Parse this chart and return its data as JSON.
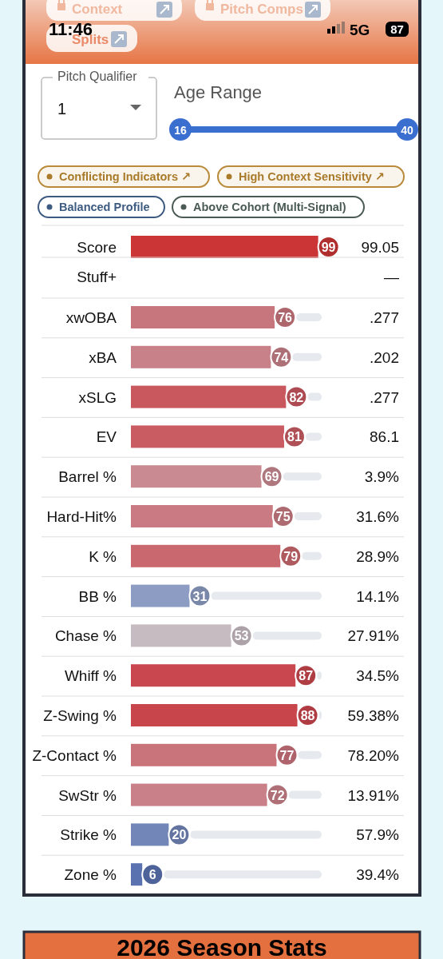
{
  "chart_data": {
    "type": "bar",
    "orientation": "horizontal",
    "categories": [
      "Score",
      "Stuff+",
      "xwOBA",
      "xBA",
      "xSLG",
      "EV",
      "Barrel %",
      "Hard-Hit%",
      "K %",
      "BB %",
      "Chase %",
      "Whiff %",
      "Z-Swing %",
      "Z-Contact %",
      "SwStr %",
      "Strike %",
      "Zone %"
    ],
    "values": [
      99,
      null,
      76,
      74,
      82,
      81,
      69,
      75,
      79,
      31,
      53,
      87,
      88,
      77,
      72,
      20,
      6
    ],
    "colors": [
      "#cc3535",
      null,
      "#c7767d",
      "#c98189",
      "#c9575e",
      "#c95c62",
      "#c98a91",
      "#c97a82",
      "#c9686e",
      "#8c9cc2",
      "#c6bbc1",
      "#c9474e",
      "#c9454c",
      "#c9737a",
      "#c98088",
      "#7286b8",
      "#5a72b0"
    ],
    "xlim": [
      0,
      100
    ],
    "tick_labels": "y",
    "data_labels": true,
    "annotations": [
      "Context",
      "Pitch Comps",
      "Splits",
      "11:46",
      "5G",
      "87",
      "Pitch Qualifier",
      "1",
      "Age Range",
      "16",
      "40",
      "Conflicting Indicators ↗",
      "High Context Sensitivity ↗",
      "Balanced Profile",
      "Above Cohort (Multi-Signal)",
      "2026 Season Stats",
      "99.05",
      "—",
      ".277",
      ".202",
      ".277",
      "86.1",
      "3.9%",
      "31.6%",
      "28.9%",
      "14.1%",
      "27.91%",
      "34.5%",
      "59.38%",
      "78.20%",
      "13.91%",
      "57.9%",
      "39.4%"
    ]
  }
}
